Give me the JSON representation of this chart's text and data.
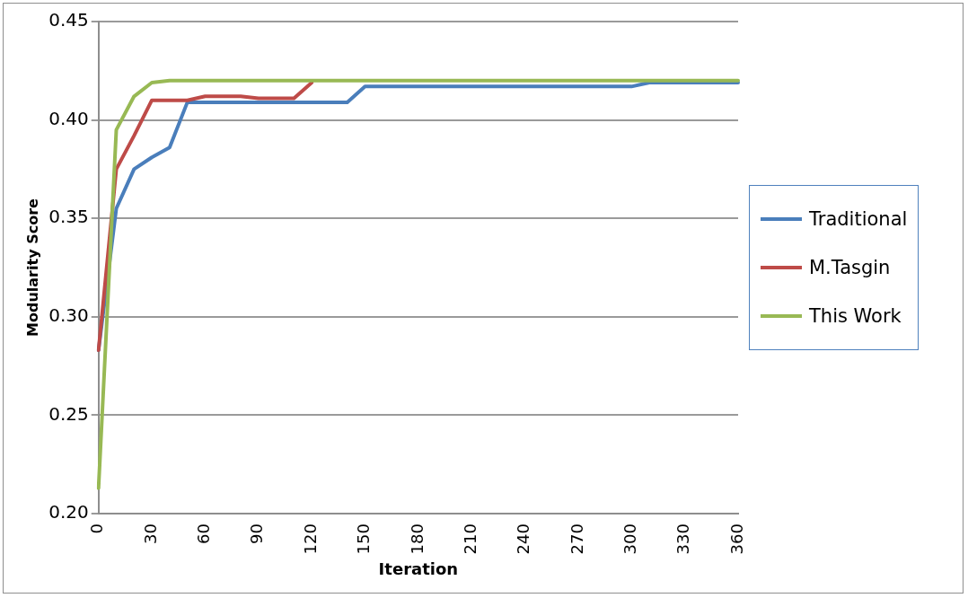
{
  "chart_data": {
    "type": "line",
    "xlabel": "Iteration",
    "ylabel": "Modularity Score",
    "categories": [
      "0",
      null,
      null,
      "30",
      null,
      null,
      "60",
      null,
      null,
      "90",
      null,
      null,
      "120",
      null,
      null,
      "150",
      null,
      null,
      "180",
      null,
      null,
      "210",
      null,
      null,
      "240",
      null,
      null,
      "270",
      null,
      null,
      "300",
      null,
      null,
      "330",
      null,
      null,
      "360"
    ],
    "series": [
      {
        "name": "Traditional",
        "color": "#4a7ebb",
        "values": [
          0.283,
          0.355,
          0.375,
          0.381,
          0.386,
          0.409,
          0.409,
          0.409,
          0.409,
          0.409,
          0.409,
          0.409,
          0.409,
          0.409,
          0.409,
          0.417,
          0.417,
          0.417,
          0.417,
          0.417,
          0.417,
          0.417,
          0.417,
          0.417,
          0.417,
          0.417,
          0.417,
          0.417,
          0.417,
          0.417,
          0.417,
          0.419,
          0.419,
          0.419,
          0.419,
          0.419,
          0.419
        ]
      },
      {
        "name": "M.Tasgin",
        "color": "#be4b48",
        "values": [
          0.283,
          0.375,
          0.392,
          0.41,
          0.41,
          0.41,
          0.412,
          0.412,
          0.412,
          0.411,
          0.411,
          0.411,
          0.419,
          null,
          null,
          null,
          null,
          null,
          null,
          null,
          null,
          null,
          null,
          null,
          null,
          null,
          null,
          null,
          null,
          null,
          null,
          null,
          null,
          null,
          null,
          null,
          null
        ]
      },
      {
        "name": "This Work",
        "color": "#98b954",
        "values": [
          0.213,
          0.395,
          0.412,
          0.419,
          0.42,
          0.42,
          0.42,
          0.42,
          0.42,
          0.42,
          0.42,
          0.42,
          0.42,
          0.42,
          0.42,
          0.42,
          0.42,
          0.42,
          0.42,
          0.42,
          0.42,
          0.42,
          0.42,
          0.42,
          0.42,
          0.42,
          0.42,
          0.42,
          0.42,
          0.42,
          0.42,
          0.42,
          0.42,
          0.42,
          0.42,
          0.42,
          0.42
        ]
      }
    ],
    "ylim": [
      0.2,
      0.45
    ],
    "yticks": [
      {
        "value": 0.2,
        "label": "0.20"
      },
      {
        "value": 0.25,
        "label": "0.25"
      },
      {
        "value": 0.3,
        "label": "0.30"
      },
      {
        "value": 0.35,
        "label": "0.35"
      },
      {
        "value": 0.4,
        "label": "0.40"
      },
      {
        "value": 0.45,
        "label": "0.45"
      }
    ],
    "grid": "y",
    "legend": "right",
    "marker": "none",
    "line_style": "solid"
  }
}
